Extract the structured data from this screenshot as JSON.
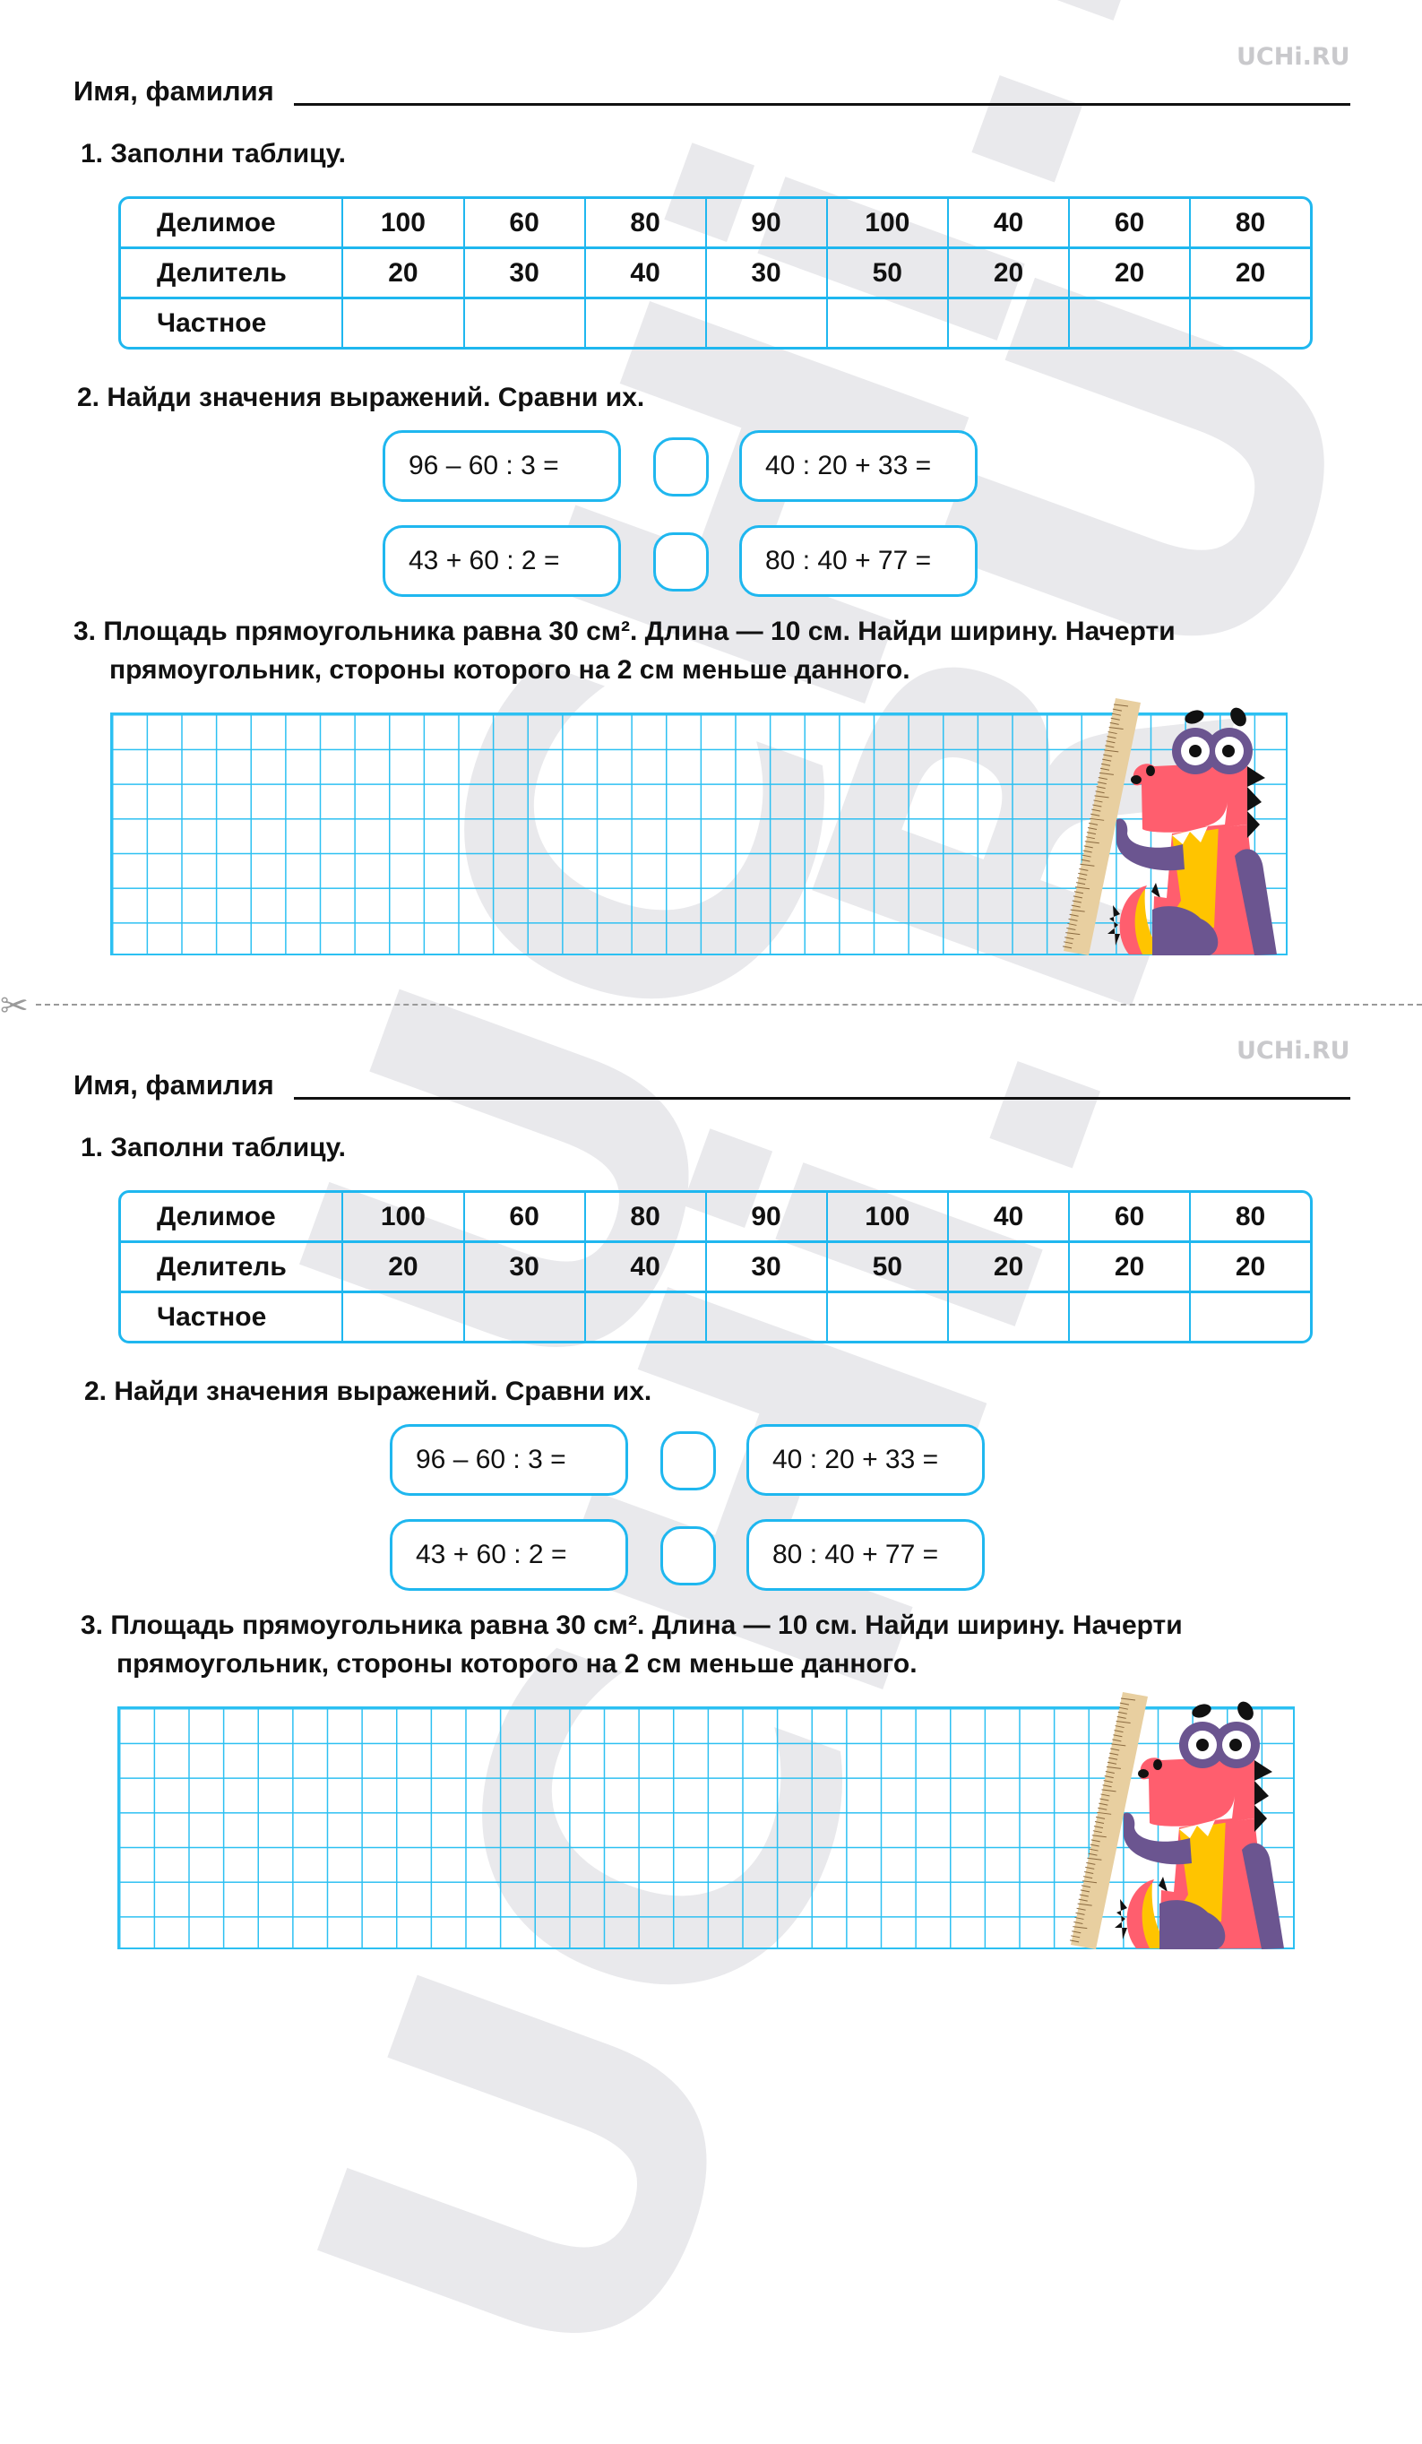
{
  "watermark": "UCHi.RU",
  "cut_line": {
    "icon": "scissors-icon",
    "glyph": "✂"
  },
  "sheets": [
    {
      "logo": "UCHi.RU",
      "name_label": "Имя, фамилия",
      "task1": {
        "title": "1. Заполни таблицу.",
        "rows": [
          {
            "header": "Делимое",
            "cells": [
              "100",
              "60",
              "80",
              "90",
              "100",
              "40",
              "60",
              "80"
            ]
          },
          {
            "header": "Делитель",
            "cells": [
              "20",
              "30",
              "40",
              "30",
              "50",
              "20",
              "20",
              "20"
            ]
          },
          {
            "header": "Частное",
            "cells": [
              "",
              "",
              "",
              "",
              "",
              "",
              "",
              ""
            ]
          }
        ]
      },
      "task2": {
        "title": "2. Найди значения выражений. Сравни их.",
        "pairs": [
          {
            "left": "96 – 60 : 3 =",
            "right": "40 : 20 + 33 ="
          },
          {
            "left": "43 + 60 : 2 =",
            "right": "80 : 40 + 77 ="
          }
        ]
      },
      "task3": {
        "line1": "3. Площадь прямоугольника равна 30 см². Длина — 10 см. Найди ширину. Начерти",
        "line2": "прямоугольник, стороны которого на 2 см меньше данного."
      }
    },
    {
      "logo": "UCHi.RU",
      "name_label": "Имя, фамилия",
      "task1": {
        "title": "1. Заполни таблицу.",
        "rows": [
          {
            "header": "Делимое",
            "cells": [
              "100",
              "60",
              "80",
              "90",
              "100",
              "40",
              "60",
              "80"
            ]
          },
          {
            "header": "Делитель",
            "cells": [
              "20",
              "30",
              "40",
              "30",
              "50",
              "20",
              "20",
              "20"
            ]
          },
          {
            "header": "Частное",
            "cells": [
              "",
              "",
              "",
              "",
              "",
              "",
              "",
              ""
            ]
          }
        ]
      },
      "task2": {
        "title": "2. Найди значения выражений. Сравни их.",
        "pairs": [
          {
            "left": "96 – 60 : 3 =",
            "right": "40 : 20 + 33 ="
          },
          {
            "left": "43 + 60 : 2 =",
            "right": "80 : 40 + 77 ="
          }
        ]
      },
      "task3": {
        "line1": "3. Площадь прямоугольника равна 30 см². Длина — 10 см. Найди ширину. Начерти",
        "line2": "прямоугольник, стороны которого на 2 см меньше данного."
      }
    }
  ],
  "colors": {
    "accent": "#1fb7ef",
    "dragon_pink": "#ff5e6e",
    "dragon_purple": "#6b5590",
    "dragon_yellow": "#ffc400",
    "ruler": "#e8cfa0"
  }
}
